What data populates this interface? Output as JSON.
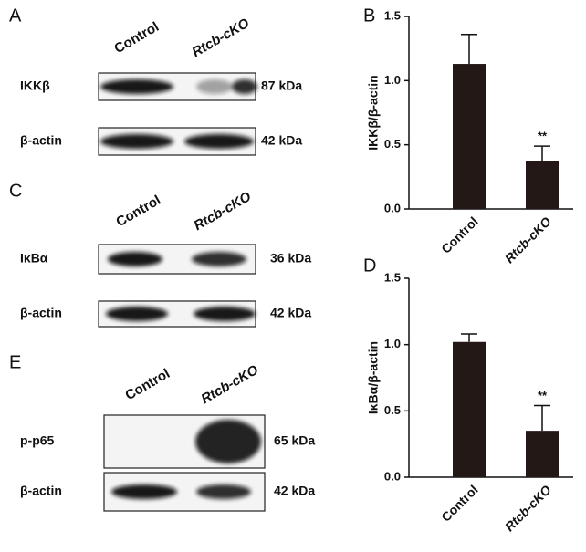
{
  "blots": [
    {
      "letter": "A",
      "lanes": [
        "Control",
        "Rtcb-cKO"
      ],
      "rows": [
        {
          "label": "IKKβ",
          "size": "87 kDa"
        },
        {
          "label": "β-actin",
          "size": "42 kDa"
        }
      ]
    },
    {
      "letter": "C",
      "lanes": [
        "Control",
        "Rtcb-cKO"
      ],
      "rows": [
        {
          "label": "IκBα",
          "size": "36 kDa"
        },
        {
          "label": "β-actin",
          "size": "42 kDa"
        }
      ]
    },
    {
      "letter": "E",
      "lanes": [
        "Control",
        "Rtcb-cKO"
      ],
      "rows": [
        {
          "label": "p-p65",
          "size": "65 kDa"
        },
        {
          "label": "β-actin",
          "size": "42 kDa"
        }
      ]
    }
  ],
  "chart_data": [
    {
      "type": "bar",
      "letter": "B",
      "ylabel": "IKKβ/β-actin",
      "categories": [
        "Control",
        "Rtcb-cKO"
      ],
      "values": [
        1.13,
        0.37
      ],
      "errors": [
        0.23,
        0.12
      ],
      "significance": [
        null,
        "**"
      ],
      "color": "#231815",
      "ylim": [
        0,
        1.5
      ],
      "yticks": [
        {
          "value": 0,
          "label": "0.0"
        },
        0.5,
        {
          "value": 1,
          "label": "1.0"
        },
        1.5
      ]
    },
    {
      "type": "bar",
      "letter": "D",
      "ylabel": "IκBα/β-actin",
      "categories": [
        "Control",
        "Rtcb-cKO"
      ],
      "values": [
        1.02,
        0.35
      ],
      "errors": [
        0.06,
        0.19
      ],
      "significance": [
        null,
        "**"
      ],
      "color": "#231815",
      "ylim": [
        0,
        1.5
      ],
      "yticks": [
        {
          "value": 0,
          "label": "0.0"
        },
        0.5,
        {
          "value": 1,
          "label": "1.0"
        },
        1.5
      ]
    }
  ]
}
